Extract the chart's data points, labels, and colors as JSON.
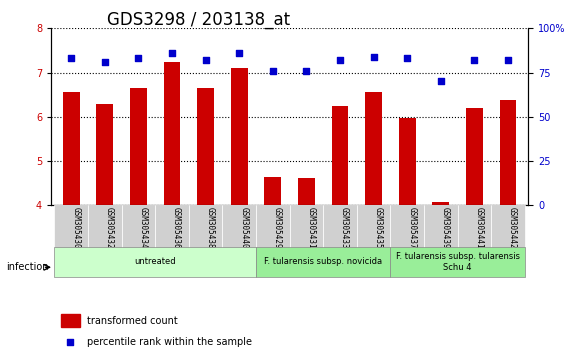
{
  "title": "GDS3298 / 203138_at",
  "samples": [
    "GSM305430",
    "GSM305432",
    "GSM305434",
    "GSM305436",
    "GSM305438",
    "GSM305440",
    "GSM305429",
    "GSM305431",
    "GSM305433",
    "GSM305435",
    "GSM305437",
    "GSM305439",
    "GSM305441",
    "GSM305442"
  ],
  "bar_values": [
    6.55,
    6.3,
    6.65,
    7.25,
    6.65,
    7.1,
    4.65,
    4.62,
    6.25,
    6.55,
    5.97,
    4.08,
    6.2,
    6.38
  ],
  "dot_values": [
    83,
    81,
    83,
    86,
    82,
    86,
    76,
    76,
    82,
    84,
    83,
    70,
    82,
    82
  ],
  "ylim": [
    4,
    8
  ],
  "y2lim": [
    0,
    100
  ],
  "yticks": [
    4,
    5,
    6,
    7,
    8
  ],
  "y2ticks": [
    0,
    25,
    50,
    75,
    100
  ],
  "bar_color": "#cc0000",
  "dot_color": "#0000cc",
  "grid_color": "#000000",
  "groups": [
    {
      "label": "untreated",
      "start": 0,
      "end": 6,
      "color": "#ccffcc"
    },
    {
      "label": "F. tularensis subsp. novicida",
      "start": 6,
      "end": 10,
      "color": "#99ee99"
    },
    {
      "label": "F. tularensis subsp. tularensis\nSchu 4",
      "start": 10,
      "end": 14,
      "color": "#99ee99"
    }
  ],
  "xlabel": "infection",
  "legend_bar_label": "transformed count",
  "legend_dot_label": "percentile rank within the sample",
  "title_fontsize": 12,
  "tick_fontsize": 7,
  "label_fontsize": 8
}
